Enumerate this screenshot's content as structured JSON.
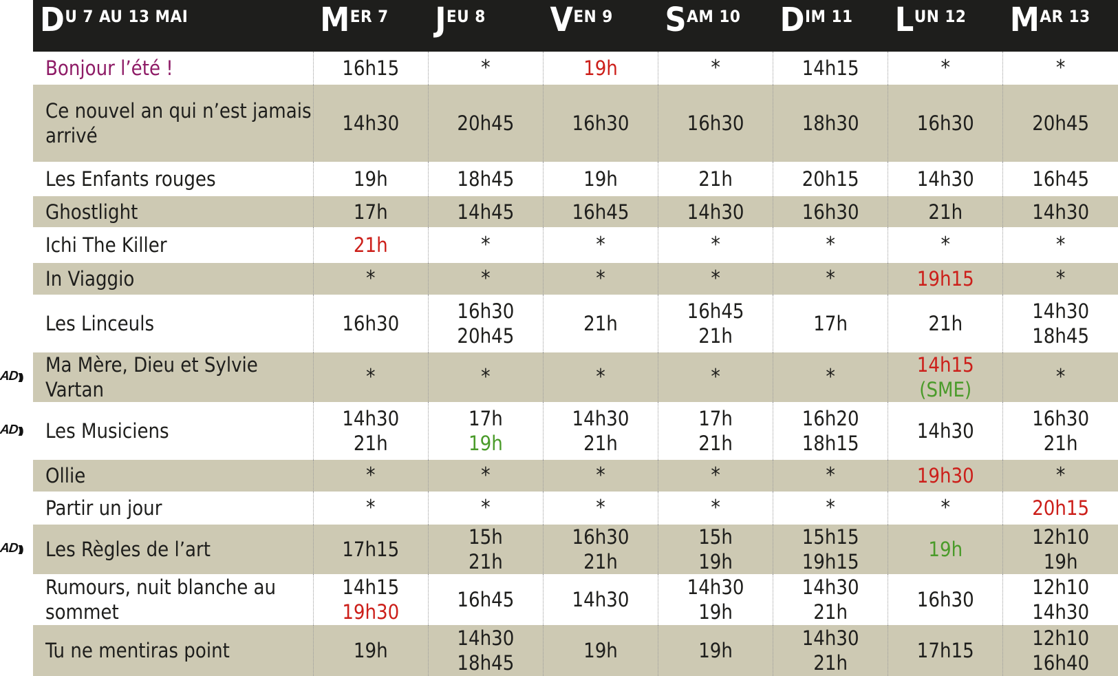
{
  "header": {
    "period": {
      "cap": "D",
      "rest": "U 7 AU 13 MAI"
    },
    "days": [
      {
        "cap": "M",
        "rest": "ER 7"
      },
      {
        "cap": "J",
        "rest": "EU 8"
      },
      {
        "cap": "V",
        "rest": "EN 9"
      },
      {
        "cap": "S",
        "rest": "AM 10"
      },
      {
        "cap": "D",
        "rest": "IM 11"
      },
      {
        "cap": "L",
        "rest": "UN 12"
      },
      {
        "cap": "M",
        "rest": "AR 13"
      }
    ]
  },
  "ad_label": "AD",
  "ad_waves": ")))",
  "colors": {
    "header_bg": "#1e1e1c",
    "row_shade": "#cdc9b3",
    "highlight_red": "#cc1f1a",
    "highlight_green": "#4a9b2a",
    "title_purple": "#8e1b66"
  },
  "rows": [
    {
      "title": "Bonjour l’été !",
      "title_color": "purple",
      "ad": false,
      "shade": false,
      "height": 48,
      "cells": [
        [
          {
            "t": "16h15"
          }
        ],
        [
          {
            "t": "*"
          }
        ],
        [
          {
            "t": "19h",
            "c": "red"
          }
        ],
        [
          {
            "t": "*"
          }
        ],
        [
          {
            "t": "14h15"
          }
        ],
        [
          {
            "t": "*"
          }
        ],
        [
          {
            "t": "*"
          }
        ]
      ]
    },
    {
      "title": "Ce nouvel an qui n’est jamais arrivé",
      "ad": false,
      "shade": true,
      "height": 112,
      "cells": [
        [
          {
            "t": "14h30"
          }
        ],
        [
          {
            "t": "20h45"
          }
        ],
        [
          {
            "t": "16h30"
          }
        ],
        [
          {
            "t": "16h30"
          }
        ],
        [
          {
            "t": "18h30"
          }
        ],
        [
          {
            "t": "16h30"
          }
        ],
        [
          {
            "t": "20h45"
          }
        ]
      ]
    },
    {
      "title": "Les Enfants rouges",
      "ad": false,
      "shade": false,
      "height": 50,
      "cells": [
        [
          {
            "t": "19h"
          }
        ],
        [
          {
            "t": "18h45"
          }
        ],
        [
          {
            "t": "19h"
          }
        ],
        [
          {
            "t": "21h"
          }
        ],
        [
          {
            "t": "20h15"
          }
        ],
        [
          {
            "t": "14h30"
          }
        ],
        [
          {
            "t": "16h45"
          }
        ]
      ]
    },
    {
      "title": "Ghostlight",
      "ad": false,
      "shade": true,
      "height": 45,
      "cells": [
        [
          {
            "t": "17h"
          }
        ],
        [
          {
            "t": "14h45"
          }
        ],
        [
          {
            "t": "16h45"
          }
        ],
        [
          {
            "t": "14h30"
          }
        ],
        [
          {
            "t": "16h30"
          }
        ],
        [
          {
            "t": "21h"
          }
        ],
        [
          {
            "t": "14h30"
          }
        ]
      ]
    },
    {
      "title": "Ichi The Killer",
      "ad": false,
      "shade": false,
      "height": 52,
      "cells": [
        [
          {
            "t": "21h",
            "c": "red"
          }
        ],
        [
          {
            "t": "*"
          }
        ],
        [
          {
            "t": "*"
          }
        ],
        [
          {
            "t": "*"
          }
        ],
        [
          {
            "t": "*"
          }
        ],
        [
          {
            "t": "*"
          }
        ],
        [
          {
            "t": "*"
          }
        ]
      ]
    },
    {
      "title": "In Viaggio",
      "ad": false,
      "shade": true,
      "height": 46,
      "cells": [
        [
          {
            "t": "*"
          }
        ],
        [
          {
            "t": "*"
          }
        ],
        [
          {
            "t": "*"
          }
        ],
        [
          {
            "t": "*"
          }
        ],
        [
          {
            "t": "*"
          }
        ],
        [
          {
            "t": "19h15",
            "c": "red"
          }
        ],
        [
          {
            "t": "*"
          }
        ]
      ]
    },
    {
      "title": "Les Linceuls",
      "ad": false,
      "shade": false,
      "height": 84,
      "cells": [
        [
          {
            "t": "16h30"
          }
        ],
        [
          {
            "t": "16h30"
          },
          {
            "t": "20h45"
          }
        ],
        [
          {
            "t": "21h"
          }
        ],
        [
          {
            "t": "16h45"
          },
          {
            "t": "21h"
          }
        ],
        [
          {
            "t": "17h"
          }
        ],
        [
          {
            "t": "21h"
          }
        ],
        [
          {
            "t": "14h30"
          },
          {
            "t": "18h45"
          }
        ]
      ]
    },
    {
      "title": "Ma Mère, Dieu et Sylvie Vartan",
      "ad": true,
      "shade": true,
      "height": 46,
      "cells": [
        [
          {
            "t": "*"
          }
        ],
        [
          {
            "t": "*"
          }
        ],
        [
          {
            "t": "*"
          }
        ],
        [
          {
            "t": "*"
          }
        ],
        [
          {
            "t": "*"
          }
        ],
        [
          {
            "t": "14h15",
            "c": "red",
            "extra": " (SME)",
            "extra_c": "green"
          }
        ],
        [
          {
            "t": "*"
          }
        ]
      ]
    },
    {
      "title": "Les Musiciens",
      "ad": true,
      "shade": false,
      "height": 84,
      "cells": [
        [
          {
            "t": "14h30"
          },
          {
            "t": "21h"
          }
        ],
        [
          {
            "t": "17h"
          },
          {
            "t": "19h",
            "c": "green"
          }
        ],
        [
          {
            "t": "14h30"
          },
          {
            "t": "21h"
          }
        ],
        [
          {
            "t": "17h"
          },
          {
            "t": "21h"
          }
        ],
        [
          {
            "t": "16h20"
          },
          {
            "t": "18h15"
          }
        ],
        [
          {
            "t": "14h30"
          }
        ],
        [
          {
            "t": "16h30"
          },
          {
            "t": "21h"
          }
        ]
      ]
    },
    {
      "title": "Ollie",
      "ad": false,
      "shade": true,
      "height": 46,
      "cells": [
        [
          {
            "t": "*"
          }
        ],
        [
          {
            "t": "*"
          }
        ],
        [
          {
            "t": "*"
          }
        ],
        [
          {
            "t": "*"
          }
        ],
        [
          {
            "t": "*"
          }
        ],
        [
          {
            "t": "19h30",
            "c": "red"
          }
        ],
        [
          {
            "t": "*"
          }
        ]
      ]
    },
    {
      "title": "Partir un jour",
      "ad": false,
      "shade": false,
      "height": 48,
      "cells": [
        [
          {
            "t": "*"
          }
        ],
        [
          {
            "t": "*"
          }
        ],
        [
          {
            "t": "*"
          }
        ],
        [
          {
            "t": "*"
          }
        ],
        [
          {
            "t": "*"
          }
        ],
        [
          {
            "t": "*"
          }
        ],
        [
          {
            "t": "20h15",
            "c": "red"
          }
        ]
      ]
    },
    {
      "title": "Les Règles de l’art",
      "ad": true,
      "shade": true,
      "height": 72,
      "cells": [
        [
          {
            "t": "17h15"
          }
        ],
        [
          {
            "t": "15h"
          },
          {
            "t": "21h"
          }
        ],
        [
          {
            "t": "16h30"
          },
          {
            "t": "21h"
          }
        ],
        [
          {
            "t": "15h"
          },
          {
            "t": "19h"
          }
        ],
        [
          {
            "t": "15h15"
          },
          {
            "t": "19h15"
          }
        ],
        [
          {
            "t": "19h",
            "c": "green"
          }
        ],
        [
          {
            "t": "12h10"
          },
          {
            "t": "19h"
          }
        ]
      ]
    },
    {
      "title": "Rumours, nuit blanche au sommet",
      "ad": false,
      "shade": false,
      "height": 74,
      "cells": [
        [
          {
            "t": "14h15"
          },
          {
            "t": "19h30",
            "c": "red"
          }
        ],
        [
          {
            "t": "16h45"
          }
        ],
        [
          {
            "t": "14h30"
          }
        ],
        [
          {
            "t": "14h30"
          },
          {
            "t": "19h"
          }
        ],
        [
          {
            "t": "14h30"
          },
          {
            "t": "21h"
          }
        ],
        [
          {
            "t": "16h30"
          }
        ],
        [
          {
            "t": "12h10"
          },
          {
            "t": "14h30"
          }
        ]
      ]
    },
    {
      "title": "Tu ne mentiras point",
      "ad": false,
      "shade": true,
      "height": 74,
      "cells": [
        [
          {
            "t": "19h"
          }
        ],
        [
          {
            "t": "14h30"
          },
          {
            "t": "18h45"
          }
        ],
        [
          {
            "t": "19h"
          }
        ],
        [
          {
            "t": "19h"
          }
        ],
        [
          {
            "t": "14h30"
          },
          {
            "t": "21h"
          }
        ],
        [
          {
            "t": "17h15"
          }
        ],
        [
          {
            "t": "12h10"
          },
          {
            "t": "16h40"
          }
        ]
      ]
    }
  ]
}
